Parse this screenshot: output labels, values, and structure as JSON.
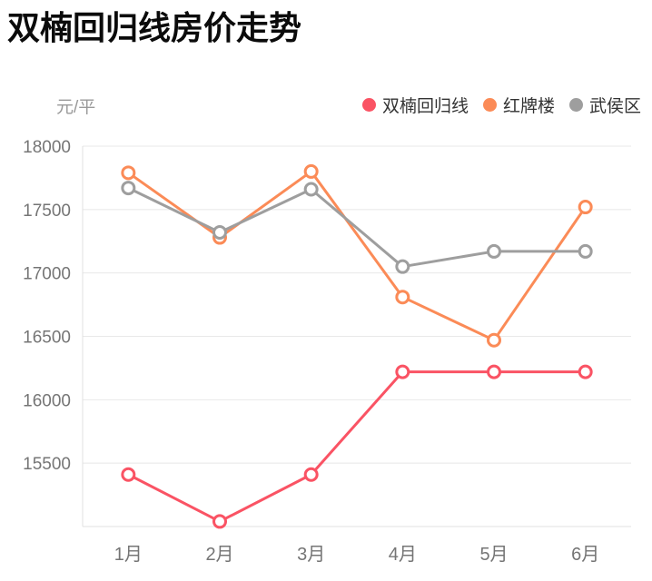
{
  "page": {
    "title": "双楠回归线房价走势"
  },
  "chart_data": {
    "type": "line",
    "title": "双楠回归线房价走势",
    "unit_label": "元/平",
    "categories": [
      "1月",
      "2月",
      "3月",
      "4月",
      "5月",
      "6月"
    ],
    "series": [
      {
        "name": "双楠回归线",
        "color": "#FA5364",
        "values": [
          15410,
          15040,
          15410,
          16220,
          16220,
          16220
        ]
      },
      {
        "name": "红牌楼",
        "color": "#FB8B57",
        "values": [
          17790,
          17280,
          17800,
          16810,
          16470,
          17520
        ]
      },
      {
        "name": "武侯区",
        "color": "#9E9E9E",
        "values": [
          17670,
          17320,
          17660,
          17050,
          17170,
          17170
        ]
      }
    ],
    "y_ticks": [
      15500,
      16000,
      16500,
      17000,
      17500,
      18000
    ],
    "ylim": [
      15000,
      18000
    ],
    "grid": true,
    "legend_position": "top-right",
    "marker": "open-circle",
    "colors": {
      "gridline": "#E8E8E8",
      "axis_line": "#E0E0E0",
      "tick_label": "#757575",
      "legend_text": "#333333",
      "unit_label": "#999999",
      "marker_fill": "#FFFFFF"
    }
  }
}
